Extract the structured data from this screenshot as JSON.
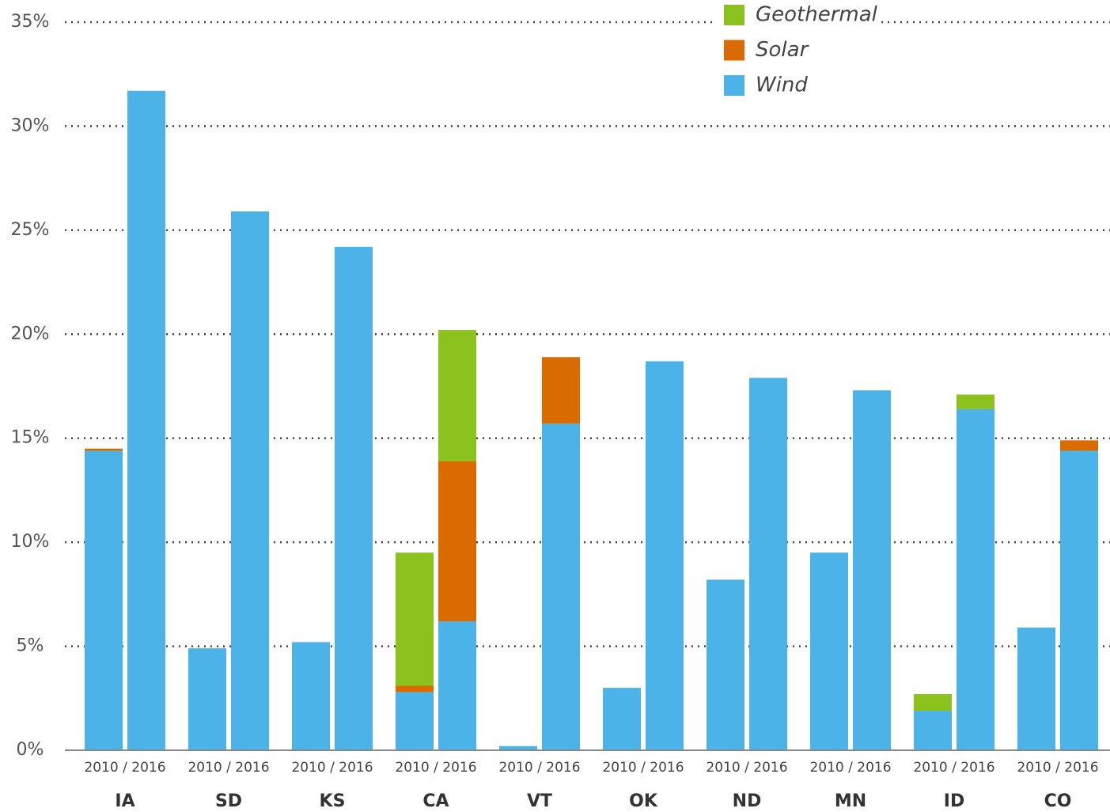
{
  "chart_data": {
    "type": "grouped_stacked_bar",
    "categories": [
      "IA",
      "SD",
      "KS",
      "CA",
      "VT",
      "OK",
      "ND",
      "MN",
      "ID",
      "CO"
    ],
    "sub_labels": [
      "2010 / 2016",
      "2010 / 2016",
      "2010 / 2016",
      "2010 / 2016",
      "2010 / 2016",
      "2010 / 2016",
      "2010 / 2016",
      "2010 / 2016",
      "2010 / 2016",
      "2010 / 2016"
    ],
    "series": [
      {
        "name": "Wind",
        "color": "#4cb3e8",
        "values": [
          [
            14.4,
            31.7
          ],
          [
            4.9,
            25.9
          ],
          [
            5.2,
            24.2
          ],
          [
            2.8,
            6.2
          ],
          [
            0.2,
            15.7
          ],
          [
            3.0,
            18.7
          ],
          [
            8.2,
            17.9
          ],
          [
            9.5,
            17.3
          ],
          [
            1.9,
            16.4
          ],
          [
            5.9,
            14.4
          ]
        ]
      },
      {
        "name": "Solar",
        "color": "#d96b00",
        "values": [
          [
            0.1,
            0
          ],
          [
            0,
            0
          ],
          [
            0,
            0
          ],
          [
            0.3,
            7.7
          ],
          [
            0,
            3.2
          ],
          [
            0,
            0
          ],
          [
            0,
            0
          ],
          [
            0,
            0
          ],
          [
            0,
            0
          ],
          [
            0,
            0.5
          ]
        ]
      },
      {
        "name": "Geothermal",
        "color": "#8cc21e",
        "values": [
          [
            0,
            0
          ],
          [
            0,
            0
          ],
          [
            0,
            0
          ],
          [
            6.4,
            6.3
          ],
          [
            0,
            0
          ],
          [
            0,
            0
          ],
          [
            0,
            0
          ],
          [
            0,
            0
          ],
          [
            0.8,
            0.7
          ],
          [
            0,
            0
          ]
        ]
      }
    ],
    "ylim": [
      0,
      35
    ],
    "yticks": [
      {
        "value": 0,
        "label": "0%"
      },
      {
        "value": 5,
        "label": "5%"
      },
      {
        "value": 10,
        "label": "10%"
      },
      {
        "value": 15,
        "label": "15%"
      },
      {
        "value": 20,
        "label": "20%"
      },
      {
        "value": 25,
        "label": "25%"
      },
      {
        "value": 30,
        "label": "30%"
      },
      {
        "value": 35,
        "label": "35%"
      }
    ],
    "grid": true,
    "legend": "top-right"
  }
}
